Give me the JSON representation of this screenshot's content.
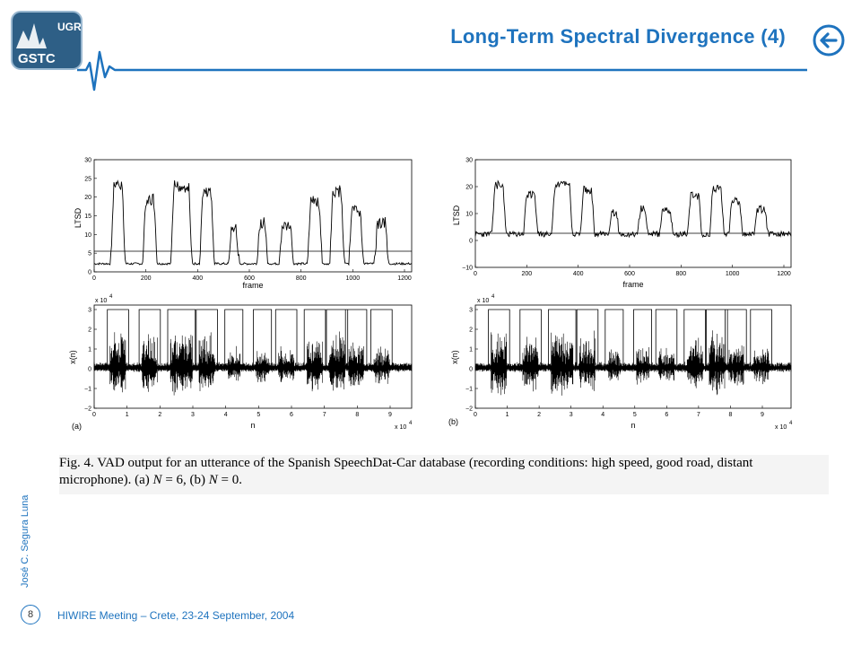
{
  "header": {
    "title": "Long-Term Spectral Divergence (4)",
    "logo_top": "UGR",
    "logo_bottom": "GSTC"
  },
  "colors": {
    "accent": "#1e73be",
    "logo_dark": "#2e5f86"
  },
  "icons": {
    "back": "back-arrow-icon"
  },
  "figure": {
    "panel_a_label": "(a)",
    "panel_b_label": "(b)",
    "top_plots": {
      "ylabel": "LTSD",
      "xlabel": "frame",
      "x_ticks": [
        "0",
        "200",
        "400",
        "600",
        "800",
        "1000",
        "1200"
      ],
      "a_y_ticks": [
        "0",
        "5",
        "10",
        "15",
        "20",
        "25",
        "30"
      ],
      "b_y_ticks": [
        "−10",
        "0",
        "10",
        "20",
        "30"
      ]
    },
    "bottom_plots": {
      "ylabel": "x(n)",
      "xlabel": "n",
      "x_ticks": [
        "0",
        "1",
        "2",
        "3",
        "4",
        "5",
        "6",
        "7",
        "8",
        "9"
      ],
      "y_ticks": [
        "−2",
        "−1",
        "0",
        "1",
        "2",
        "3"
      ],
      "exponent_label": "x 10",
      "exponent_value": "4"
    },
    "caption_parts": [
      "Fig. 4.  VAD output for an utterance of the Spanish SpeechDat-Car database (recording conditions: high speed, good road, distant microphone). (a) ",
      "N",
      " = 6, (b) ",
      "N",
      " = 0."
    ]
  },
  "sidebar": {
    "author": "José C. Segura Luna"
  },
  "footer": {
    "page_number": "8",
    "text": "HIWIRE  Meeting – Crete, 23-24  September, 2004"
  }
}
